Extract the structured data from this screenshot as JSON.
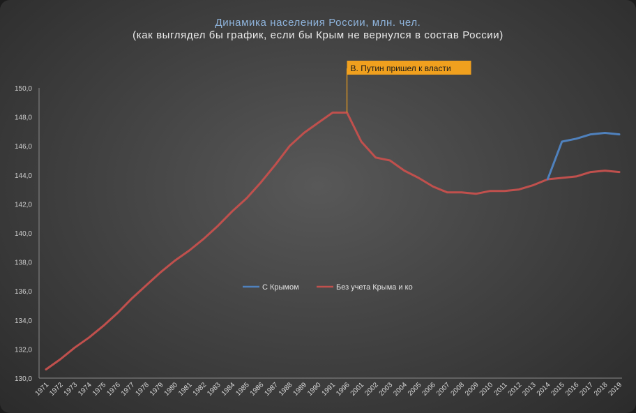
{
  "chart_data": {
    "type": "line",
    "title": "Динамика населения России, млн. чел.",
    "subtitle": "(как выглядел бы график, если бы Крым не вернулся  в состав России)",
    "ylim": [
      130.0,
      150.0
    ],
    "y_ticks": [
      "130,0",
      "132,0",
      "134,0",
      "136,0",
      "138,0",
      "140,0",
      "142,0",
      "144,0",
      "146,0",
      "148,0",
      "150,0"
    ],
    "categories": [
      "1971",
      "1972",
      "1973",
      "1974",
      "1975",
      "1976",
      "1977",
      "1978",
      "1979",
      "1980",
      "1981",
      "1982",
      "1983",
      "1984",
      "1985",
      "1986",
      "1987",
      "1988",
      "1989",
      "1990",
      "1991",
      "1996",
      "2001",
      "2002",
      "2003",
      "2004",
      "2005",
      "2006",
      "2007",
      "2008",
      "2009",
      "2010",
      "2011",
      "2012",
      "2013",
      "2014",
      "2015",
      "2016",
      "2017",
      "2018",
      "2019"
    ],
    "series": [
      {
        "name": "С Крымом",
        "color": "#4f81bd",
        "values": [
          null,
          null,
          null,
          null,
          null,
          null,
          null,
          null,
          null,
          null,
          null,
          null,
          null,
          null,
          null,
          null,
          null,
          null,
          null,
          null,
          null,
          null,
          null,
          null,
          null,
          null,
          null,
          null,
          null,
          null,
          null,
          null,
          null,
          null,
          null,
          143.7,
          146.3,
          146.5,
          146.8,
          146.9,
          146.8
        ]
      },
      {
        "name": "Без учета Крыма и ко",
        "color": "#c0504d",
        "values": [
          130.6,
          131.3,
          132.1,
          132.8,
          133.6,
          134.5,
          135.5,
          136.4,
          137.3,
          138.1,
          138.8,
          139.6,
          140.5,
          141.5,
          142.4,
          143.5,
          144.7,
          146.0,
          146.9,
          147.6,
          148.3,
          148.3,
          146.3,
          145.2,
          145.0,
          144.3,
          143.8,
          143.2,
          142.8,
          142.8,
          142.7,
          142.9,
          142.9,
          143.0,
          143.3,
          143.7,
          143.8,
          143.9,
          144.2,
          144.3,
          144.2
        ]
      }
    ],
    "legend_position": "center-left",
    "annotation": {
      "text": "В. Путин пришел к власти",
      "at_category": "1996",
      "color": "#f0a01e"
    },
    "grid": false
  }
}
